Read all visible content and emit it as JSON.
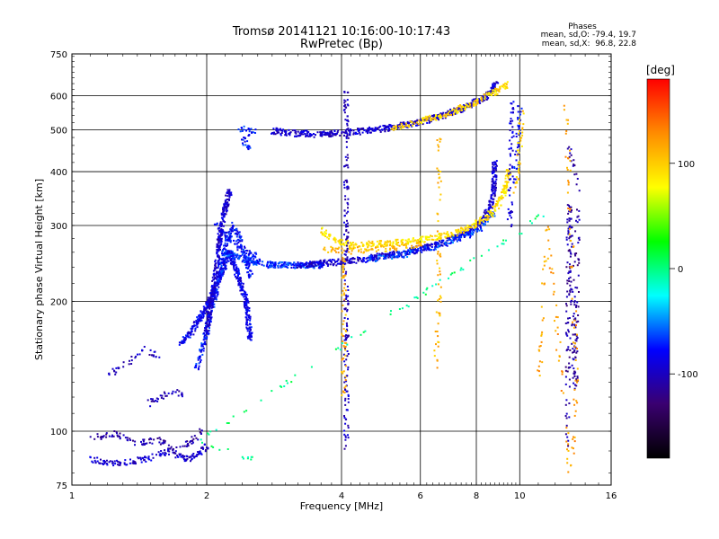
{
  "chart_data": {
    "type": "scatter",
    "title": "Tromsø 20141121 10:16:00-10:17:43",
    "subtitle": "RwPretec (Bp)",
    "xlabel": "Frequency [MHz]",
    "ylabel": "Stationary phase Virtual Height [km]",
    "x_scale": "log",
    "y_scale": "log",
    "xlim": [
      1,
      16
    ],
    "ylim": [
      75,
      750
    ],
    "x_ticks": [
      1,
      2,
      4,
      6,
      8,
      10,
      16
    ],
    "y_ticks": [
      75,
      100,
      200,
      300,
      400,
      500,
      600,
      750
    ],
    "grid": true,
    "phases_box": {
      "heading": "Phases",
      "line1": "mean, sd,O: -79.4, 19.7",
      "line2": "mean, sd,X:  96.8, 22.8"
    },
    "colorbar": {
      "label": "[deg]",
      "ticks": [
        100,
        0,
        -100
      ],
      "range": [
        -180,
        180
      ],
      "colors": [
        "#ff0000",
        "#ff8c00",
        "#ffff00",
        "#00ff00",
        "#00ffff",
        "#0000ff",
        "#3a0070",
        "#000000"
      ]
    },
    "traces": [
      {
        "phase": -95,
        "density": 1.3,
        "points": [
          [
            1.1,
            86
          ],
          [
            1.25,
            84
          ],
          [
            1.45,
            86
          ],
          [
            1.65,
            90
          ],
          [
            1.8,
            86
          ],
          [
            1.9,
            88
          ],
          [
            2.0,
            92
          ]
        ]
      },
      {
        "phase": -110,
        "density": 0.8,
        "points": [
          [
            1.1,
            96
          ],
          [
            1.25,
            99
          ],
          [
            1.4,
            93
          ],
          [
            1.55,
            96
          ],
          [
            1.7,
            90
          ],
          [
            1.85,
            95
          ],
          [
            1.95,
            100
          ]
        ]
      },
      {
        "phase": -100,
        "density": 0.6,
        "points": [
          [
            1.2,
            135
          ],
          [
            1.35,
            145
          ],
          [
            1.45,
            155
          ],
          [
            1.55,
            150
          ]
        ]
      },
      {
        "phase": -105,
        "density": 0.7,
        "points": [
          [
            1.45,
            115
          ],
          [
            1.55,
            118
          ],
          [
            1.65,
            124
          ],
          [
            1.75,
            122
          ]
        ]
      },
      {
        "phase": -85,
        "density": 2.6,
        "points": [
          [
            1.75,
            160
          ],
          [
            1.85,
            170
          ],
          [
            1.95,
            185
          ],
          [
            2.05,
            205
          ],
          [
            2.15,
            230
          ],
          [
            2.25,
            260
          ],
          [
            2.35,
            230
          ],
          [
            2.45,
            200
          ],
          [
            2.5,
            165
          ]
        ]
      },
      {
        "phase": -75,
        "density": 1.6,
        "points": [
          [
            1.9,
            140
          ],
          [
            2.0,
            170
          ],
          [
            2.1,
            210
          ],
          [
            2.2,
            270
          ],
          [
            2.3,
            300
          ],
          [
            2.4,
            270
          ],
          [
            2.5,
            230
          ]
        ]
      },
      {
        "phase": -95,
        "density": 2.4,
        "points": [
          [
            2.0,
            170
          ],
          [
            2.05,
            200
          ],
          [
            2.1,
            240
          ],
          [
            2.15,
            290
          ],
          [
            2.2,
            330
          ],
          [
            2.25,
            360
          ]
        ]
      },
      {
        "phase": -80,
        "density": 1.3,
        "points": [
          [
            2.1,
            300
          ],
          [
            2.25,
            280
          ],
          [
            2.4,
            265
          ],
          [
            2.55,
            255
          ]
        ]
      },
      {
        "phase": -70,
        "density": 2.8,
        "points": [
          [
            2.2,
            260
          ],
          [
            2.5,
            248
          ],
          [
            2.8,
            243
          ],
          [
            3.2,
            242
          ],
          [
            3.6,
            243
          ]
        ]
      },
      {
        "phase": -95,
        "density": 2.2,
        "points": [
          [
            3.2,
            243
          ],
          [
            3.8,
            246
          ],
          [
            4.4,
            250
          ],
          [
            5.0,
            255
          ],
          [
            5.6,
            260
          ],
          [
            6.2,
            267
          ],
          [
            6.8,
            275
          ],
          [
            7.4,
            285
          ],
          [
            7.9,
            296
          ],
          [
            8.3,
            310
          ],
          [
            8.6,
            330
          ],
          [
            8.75,
            360
          ],
          [
            8.8,
            420
          ]
        ]
      },
      {
        "phase": -65,
        "density": 1.4,
        "points": [
          [
            4.5,
            250
          ],
          [
            5.5,
            257
          ],
          [
            6.5,
            268
          ],
          [
            7.5,
            282
          ],
          [
            8.3,
            300
          ],
          [
            8.7,
            320
          ]
        ]
      },
      {
        "phase": 90,
        "density": 1.6,
        "points": [
          [
            3.6,
            292
          ],
          [
            3.9,
            276
          ],
          [
            4.3,
            270
          ],
          [
            4.9,
            272
          ],
          [
            5.5,
            275
          ],
          [
            6.0,
            278
          ],
          [
            6.6,
            282
          ],
          [
            7.2,
            289
          ],
          [
            7.8,
            298
          ],
          [
            8.4,
            312
          ],
          [
            8.9,
            330
          ],
          [
            9.25,
            360
          ],
          [
            9.45,
            400
          ]
        ]
      },
      {
        "phase": 110,
        "density": 1.0,
        "points": [
          [
            3.6,
            265
          ],
          [
            4.2,
            262
          ],
          [
            5.0,
            265
          ],
          [
            6.0,
            272
          ]
        ]
      },
      {
        "phase": -80,
        "density": 0.5,
        "points": [
          [
            9.75,
            380
          ],
          [
            9.85,
            420
          ],
          [
            9.9,
            470
          ],
          [
            9.95,
            520
          ],
          [
            10.0,
            560
          ]
        ]
      },
      {
        "phase": 100,
        "density": 0.45,
        "points": [
          [
            9.8,
            360
          ],
          [
            9.9,
            400
          ],
          [
            10.0,
            450
          ],
          [
            10.05,
            500
          ],
          [
            10.1,
            550
          ]
        ]
      },
      {
        "phase": -75,
        "density": 0.8,
        "points": [
          [
            2.35,
            505
          ],
          [
            2.45,
            500
          ],
          [
            2.55,
            495
          ],
          [
            2.4,
            470
          ],
          [
            2.5,
            450
          ]
        ]
      },
      {
        "phase": -95,
        "density": 2.2,
        "points": [
          [
            2.8,
            497
          ],
          [
            3.2,
            490
          ],
          [
            3.7,
            488
          ],
          [
            4.2,
            493
          ],
          [
            4.8,
            500
          ],
          [
            5.4,
            510
          ],
          [
            6.0,
            522
          ],
          [
            6.6,
            536
          ],
          [
            7.2,
            552
          ],
          [
            7.8,
            572
          ],
          [
            8.3,
            592
          ],
          [
            8.6,
            610
          ],
          [
            8.85,
            635
          ]
        ]
      },
      {
        "phase": 95,
        "density": 1.4,
        "points": [
          [
            5.2,
            505
          ],
          [
            5.8,
            518
          ],
          [
            6.5,
            534
          ],
          [
            7.1,
            550
          ],
          [
            7.7,
            570
          ],
          [
            8.3,
            592
          ],
          [
            8.8,
            612
          ],
          [
            9.1,
            626
          ],
          [
            9.3,
            635
          ]
        ]
      },
      {
        "phase": -100,
        "density": 0.6,
        "points": [
          [
            4.1,
            90
          ],
          [
            4.1,
            200
          ],
          [
            4.1,
            320
          ],
          [
            4.1,
            450
          ],
          [
            4.1,
            620
          ]
        ]
      },
      {
        "phase": 115,
        "density": 0.5,
        "points": [
          [
            4.05,
            120
          ],
          [
            4.05,
            180
          ],
          [
            4.05,
            250
          ]
        ]
      },
      {
        "phase": -90,
        "density": 0.5,
        "points": [
          [
            9.5,
            300
          ],
          [
            9.55,
            400
          ],
          [
            9.6,
            520
          ],
          [
            9.65,
            580
          ]
        ]
      },
      {
        "phase": 110,
        "density": 0.3,
        "points": [
          [
            6.5,
            140
          ],
          [
            6.55,
            170
          ],
          [
            6.6,
            200
          ],
          [
            6.6,
            480
          ]
        ]
      },
      {
        "phase": -110,
        "density": 0.4,
        "points": [
          [
            12.8,
            90
          ],
          [
            12.85,
            280
          ],
          [
            12.9,
            340
          ],
          [
            13.3,
            120
          ],
          [
            13.5,
            380
          ],
          [
            12.9,
            450
          ]
        ]
      },
      {
        "phase": 120,
        "density": 0.2,
        "points": [
          [
            11.0,
            120
          ],
          [
            11.5,
            300
          ],
          [
            13.0,
            78
          ],
          [
            13.4,
            130
          ],
          [
            12.7,
            560
          ]
        ]
      },
      {
        "phase": 0,
        "density": 0.2,
        "points": [
          [
            10.8,
            310
          ],
          [
            11.5,
            320
          ],
          [
            1.9,
            95
          ],
          [
            2.5,
            86
          ]
        ]
      }
    ]
  }
}
